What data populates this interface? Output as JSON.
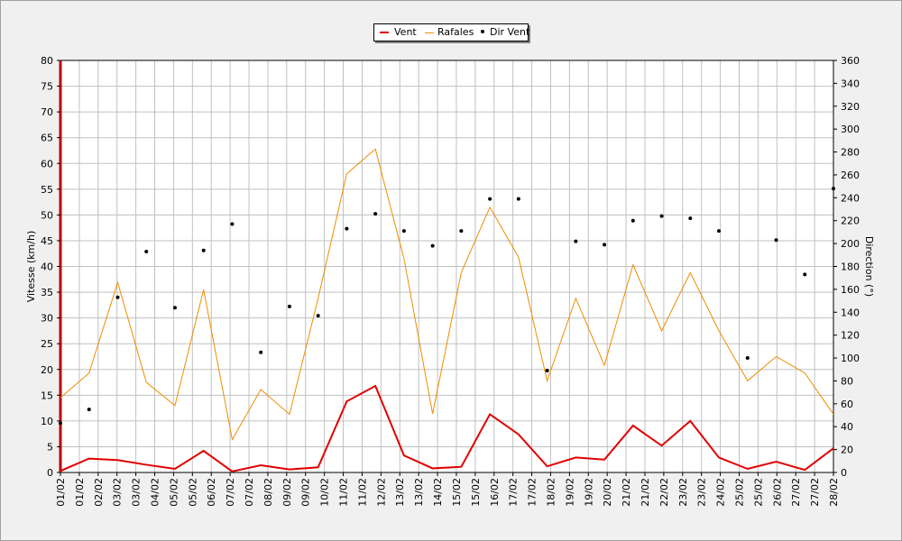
{
  "chart_data": {
    "type": "line",
    "x_ticks": [
      "01/02",
      "01/02",
      "02/02",
      "03/02",
      "03/02",
      "04/02",
      "05/02",
      "05/02",
      "06/02",
      "07/02",
      "07/02",
      "08/02",
      "09/02",
      "09/02",
      "10/02",
      "11/02",
      "11/02",
      "12/02",
      "13/02",
      "13/02",
      "14/02",
      "15/02",
      "15/02",
      "16/02",
      "17/02",
      "17/02",
      "18/02",
      "19/02",
      "19/02",
      "20/02",
      "21/02",
      "21/02",
      "22/02",
      "23/02",
      "23/02",
      "24/02",
      "25/02",
      "25/02",
      "26/02",
      "27/02",
      "27/02",
      "28/02"
    ],
    "categories": [
      "01/02",
      "02/02",
      "03/02",
      "04/02",
      "05/02",
      "06/02",
      "07/02",
      "08/02",
      "09/02",
      "10/02",
      "11/02",
      "12/02",
      "13/02",
      "14/02",
      "15/02",
      "16/02",
      "17/02",
      "18/02",
      "19/02",
      "20/02",
      "21/02",
      "22/02",
      "23/02",
      "24/02",
      "25/02",
      "26/02",
      "27/02",
      "28/02"
    ],
    "series": [
      {
        "name": "Vent",
        "axis": "left",
        "color": "#e00000",
        "values": [
          0.3,
          2.7,
          2.4,
          1.5,
          0.7,
          4.2,
          0.2,
          1.4,
          0.6,
          1.0,
          13.8,
          16.8,
          3.3,
          0.8,
          1.1,
          11.3,
          7.4,
          1.2,
          2.9,
          2.5,
          9.1,
          5.2,
          10.0,
          2.9,
          0.7,
          2.1,
          0.5,
          4.7
        ]
      },
      {
        "name": "Rafales",
        "axis": "left",
        "color": "#f08c00",
        "values": [
          14.5,
          19.3,
          36.9,
          17.5,
          13.0,
          35.5,
          6.4,
          16.1,
          11.3,
          33.8,
          58.0,
          62.8,
          41.5,
          11.4,
          38.8,
          51.5,
          41.8,
          17.8,
          33.8,
          20.8,
          40.3,
          27.5,
          38.8,
          27.5,
          17.8,
          22.5,
          19.3,
          11.3
        ]
      },
      {
        "name": "Dir Vent",
        "axis": "right",
        "color": "#000000",
        "values": [
          43,
          55,
          153,
          193,
          144,
          194,
          217,
          105,
          145,
          137,
          213,
          226,
          211,
          198,
          211,
          239,
          239,
          89,
          202,
          199,
          220,
          224,
          222,
          211,
          100,
          203,
          173,
          248
        ]
      }
    ],
    "ylabel": "Vitesse (km/h)",
    "ylim": [
      0,
      80
    ],
    "y_ticks": [
      0,
      5,
      10,
      15,
      20,
      25,
      30,
      35,
      40,
      45,
      50,
      55,
      60,
      65,
      70,
      75,
      80
    ],
    "y2label": "Direction (°)",
    "y2lim": [
      0,
      360
    ],
    "y2_ticks": [
      0,
      20,
      40,
      60,
      80,
      100,
      120,
      140,
      160,
      180,
      200,
      220,
      240,
      260,
      280,
      300,
      320,
      340,
      360
    ],
    "grid": true,
    "legend_position": "top-center"
  },
  "colors": {
    "background": "#f0f0f0",
    "plot_background": "#ffffff",
    "grid": "#c0c0c0",
    "vent": "#e00000",
    "rafales": "#f08c00",
    "dir": "#000000"
  }
}
